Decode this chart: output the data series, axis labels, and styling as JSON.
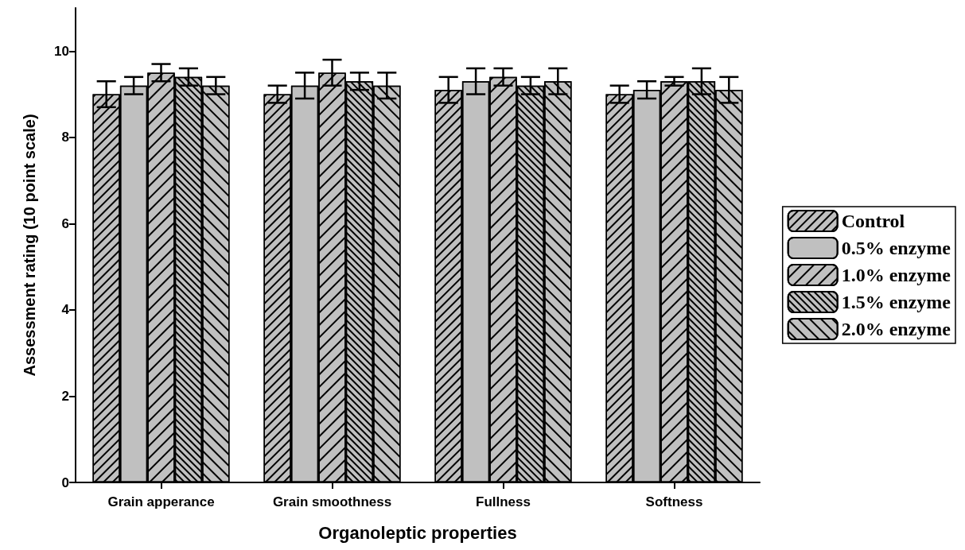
{
  "chart_data": {
    "type": "bar",
    "xlabel": "Organoleptic properties",
    "ylabel": "Assessment rating (10 point scale)",
    "categories": [
      "Grain apperance",
      "Grain smoothness",
      "Fullness",
      "Softness"
    ],
    "series": [
      {
        "name": "Control",
        "color": "#c0c0c0",
        "values": [
          9.0,
          9.0,
          9.1,
          9.0
        ],
        "errors": [
          0.3,
          0.2,
          0.3,
          0.2
        ]
      },
      {
        "name": "0.5% enzyme",
        "color": "#c0c0c0",
        "values": [
          9.2,
          9.2,
          9.3,
          9.1
        ],
        "errors": [
          0.2,
          0.3,
          0.3,
          0.2
        ]
      },
      {
        "name": "1.0% enzyme",
        "color": "#c0c0c0",
        "values": [
          9.5,
          9.5,
          9.4,
          9.3
        ],
        "errors": [
          0.2,
          0.3,
          0.2,
          0.1
        ]
      },
      {
        "name": "1.5% enzyme",
        "color": "#c0c0c0",
        "values": [
          9.4,
          9.3,
          9.2,
          9.3
        ],
        "errors": [
          0.2,
          0.2,
          0.2,
          0.3
        ]
      },
      {
        "name": "2.0% enzyme",
        "color": "#c0c0c0",
        "values": [
          9.2,
          9.2,
          9.3,
          9.1
        ],
        "errors": [
          0.2,
          0.3,
          0.3,
          0.3
        ]
      }
    ],
    "ylim": [
      0,
      11
    ],
    "yticks": [
      0,
      2,
      4,
      6,
      8,
      10
    ],
    "grid": false,
    "legend": "right"
  }
}
